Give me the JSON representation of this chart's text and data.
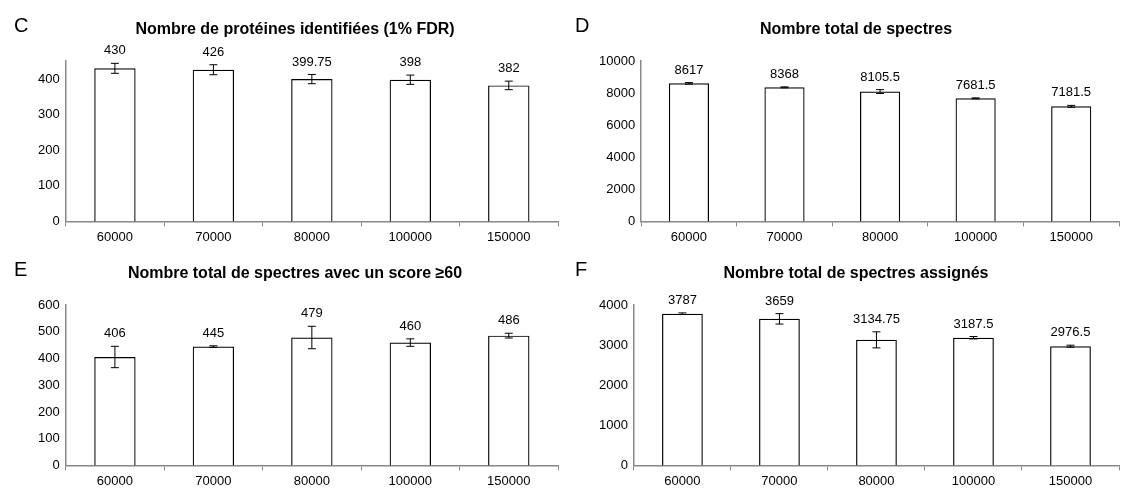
{
  "chart_data": [
    {
      "type": "bar",
      "title": "Nombre de protéines identifiées (1% FDR)",
      "annotations": [
        "C"
      ],
      "categories": [
        "60000",
        "70000",
        "80000",
        "100000",
        "150000"
      ],
      "values": [
        430,
        426,
        399.75,
        398,
        382
      ],
      "errors": [
        14,
        14,
        13,
        13,
        12
      ],
      "color": "#000000",
      "ylim": [
        0,
        450
      ],
      "yticks": [
        0,
        100,
        200,
        300,
        400
      ],
      "grid": false,
      "legend": false,
      "data_labels": true
    },
    {
      "type": "bar",
      "title": "Nombre total de spectres",
      "annotations": [
        "D"
      ],
      "categories": [
        "60000",
        "70000",
        "80000",
        "100000",
        "150000"
      ],
      "values": [
        8617,
        8368,
        8105.5,
        7681.5,
        7181.5
      ],
      "errors": [
        50,
        30,
        120,
        30,
        60
      ],
      "color": "#000000",
      "ylim": [
        0,
        10000
      ],
      "yticks": [
        0,
        2000,
        4000,
        6000,
        8000,
        10000
      ],
      "grid": false,
      "legend": false,
      "data_labels": true
    },
    {
      "type": "bar",
      "title": "Nombre total de spectres avec un score ≥60",
      "annotations": [
        "E"
      ],
      "categories": [
        "60000",
        "70000",
        "80000",
        "100000",
        "150000"
      ],
      "values": [
        406,
        445,
        479,
        460,
        486
      ],
      "errors": [
        40,
        3,
        42,
        14,
        9
      ],
      "color": "#000000",
      "ylim": [
        0,
        600
      ],
      "yticks": [
        0,
        100,
        200,
        300,
        400,
        500,
        600
      ],
      "grid": false,
      "legend": false,
      "data_labels": true
    },
    {
      "type": "bar",
      "title": "Nombre total de spectres assignés",
      "annotations": [
        "F"
      ],
      "categories": [
        "60000",
        "70000",
        "80000",
        "100000",
        "150000"
      ],
      "values": [
        3787,
        3659,
        3134.75,
        3187.5,
        2976.5
      ],
      "errors": [
        20,
        130,
        200,
        30,
        25
      ],
      "color": "#000000",
      "ylim": [
        0,
        4000
      ],
      "yticks": [
        0,
        1000,
        2000,
        3000,
        4000
      ],
      "grid": false,
      "legend": false,
      "data_labels": true
    }
  ]
}
